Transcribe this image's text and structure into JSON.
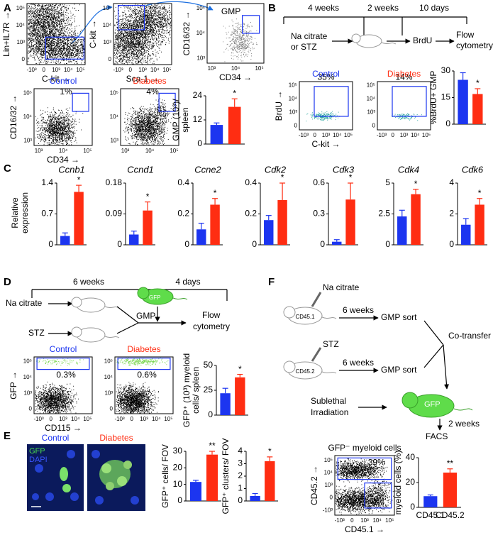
{
  "panels": {
    "A": {
      "letter": "A",
      "plots": [
        {
          "x_label": "C-kit →",
          "y_label": "Lin+IL7R →",
          "x_ticks": [
            "-10³",
            "0",
            "10³",
            "10⁴",
            "10⁵"
          ],
          "y_ticks": [
            "10⁵",
            "10⁴",
            "10³",
            "0"
          ]
        },
        {
          "x_label": "Sca-1 →",
          "y_label": "C-kit →",
          "x_ticks": [
            "-10³",
            "0",
            "10³",
            "10⁴",
            "10⁵"
          ],
          "y_ticks": [
            "10⁵",
            "10⁴",
            "10³",
            "0"
          ]
        },
        {
          "x_label": "CD34 →",
          "y_label": "CD16/32 →",
          "x_ticks": [
            "10³",
            "10⁴",
            "10⁵"
          ],
          "y_ticks": [
            "10⁵",
            "10⁴",
            "10³"
          ],
          "gates": [
            "GMP"
          ]
        },
        {
          "title": "Control",
          "x_label": "CD34 →",
          "y_label": "CD16/32 →",
          "x_ticks": [
            "10³",
            "10⁴",
            "10⁵"
          ],
          "y_ticks": [
            "10⁵",
            "10⁴",
            "10³"
          ],
          "gates": [
            "1%"
          ]
        },
        {
          "title": "Diabetes",
          "x_label": "",
          "y_label": "",
          "x_ticks": [
            "10³",
            "10⁴",
            "10⁵"
          ],
          "y_ticks": [
            "10⁵",
            "10⁴",
            "10³"
          ],
          "gates": [
            "4%"
          ]
        }
      ]
    },
    "B": {
      "letter": "B",
      "timeline": [
        "4 weeks",
        "2 weeks",
        "10 days"
      ],
      "treatment": [
        "Na citrate",
        "or STZ"
      ],
      "label": "BrdU",
      "readout": [
        "Flow",
        "cytometry"
      ],
      "plots": [
        {
          "title": "Control",
          "x_label": "C-kit →",
          "y_label": "BrdU →",
          "x_ticks": [
            "-10³",
            "0",
            "10³",
            "10⁴",
            "10⁵"
          ],
          "y_ticks": [
            "10⁵",
            "10⁴",
            "10³",
            "0"
          ],
          "gates": [
            "35%"
          ]
        },
        {
          "title": "Diabetes",
          "x_label": "",
          "y_label": "",
          "x_ticks": [
            "-10³",
            "0",
            "10³",
            "10⁴",
            "10⁵"
          ],
          "y_ticks": [
            "10⁵",
            "10⁴",
            "10³",
            "0"
          ],
          "gates": [
            "14%"
          ]
        }
      ]
    },
    "C": {
      "letter": "C",
      "ylabel": [
        "Relative",
        "expression"
      ]
    },
    "D": {
      "letter": "D",
      "timeline": [
        "6 weeks",
        "4 days"
      ],
      "control": "Na citrate",
      "treatment": "STZ",
      "donor": "GFP",
      "cells": "GMP",
      "readout": [
        "Flow",
        "cytometry"
      ],
      "plots": [
        {
          "title": "Control",
          "x_label": "CD115 →",
          "y_label": "GFP →",
          "x_ticks": [
            "-10³",
            "0",
            "10³",
            "10⁴",
            "10⁵"
          ],
          "y_ticks": [
            "10⁵",
            "10⁴",
            "10³",
            "0"
          ],
          "gates": [
            "0.3%"
          ]
        },
        {
          "title": "Diabetes",
          "x_label": "",
          "y_label": "",
          "x_ticks": [
            "-10³",
            "0",
            "10³",
            "10⁴",
            "10⁵"
          ],
          "y_ticks": [
            "10⁵",
            "10⁴",
            "10³",
            "0"
          ],
          "gates": [
            "0.6%"
          ]
        }
      ]
    },
    "E": {
      "letter": "E",
      "images": [
        "Control",
        "Diabetes"
      ],
      "stains": [
        "GFP",
        "DAPI"
      ]
    },
    "F": {
      "letter": "F",
      "donor1": {
        "treatment": "Na citrate",
        "strain": "CD45.1",
        "time": "6 weeks",
        "step": "GMP sort"
      },
      "donor2": {
        "treatment": "STZ",
        "strain": "CD45.2",
        "time": "6 weeks",
        "step": "GMP sort"
      },
      "merge": "Co-transfer",
      "recipient": [
        "Sublethal",
        "Irradiation"
      ],
      "recipient_mouse": "GFP",
      "time": "2 weeks",
      "readout": "FACS",
      "plots": [
        {
          "title": "GFP⁻ myeloid cells",
          "x_label": "CD45.1 →",
          "y_label": "CD45.2 →",
          "x_ticks": [
            "-10³",
            "0",
            "10³",
            "10⁴",
            "10⁵"
          ],
          "y_ticks": [
            "10⁵",
            "10⁴",
            "10³",
            "0",
            "-10³"
          ],
          "gates": [
            "39%",
            "9%"
          ]
        }
      ]
    }
  },
  "chart_data": [
    {
      "type": "bar",
      "ylabel": [
        "GMP (10³)/",
        "spleen"
      ],
      "values": [
        9.5,
        18.5
      ],
      "errors": [
        1,
        4
      ],
      "colors": [
        "#1c35f0",
        "#ff2d12"
      ],
      "ylim": [
        0,
        24
      ],
      "yticks": [
        0,
        12,
        24
      ],
      "significance": "*"
    },
    {
      "type": "bar",
      "ylabel": [
        "%BrdU+ GMP"
      ],
      "values": [
        25,
        17
      ],
      "errors": [
        4,
        3
      ],
      "colors": [
        "#1c35f0",
        "#ff2d12"
      ],
      "ylim": [
        0,
        30
      ],
      "yticks": [
        0,
        15,
        30
      ],
      "significance": "*"
    },
    {
      "type": "bar",
      "title": "Ccnb1",
      "values": [
        0.2,
        1.2
      ],
      "errors": [
        0.07,
        0.15
      ],
      "colors": [
        "#1c35f0",
        "#ff2d12"
      ],
      "ylim": [
        0,
        1.4
      ],
      "yticks": [
        0,
        0.7,
        1.4
      ],
      "significance": "*"
    },
    {
      "type": "bar",
      "title": "Ccnd1",
      "values": [
        0.03,
        0.1
      ],
      "errors": [
        0.01,
        0.025
      ],
      "colors": [
        "#1c35f0",
        "#ff2d12"
      ],
      "ylim": [
        0,
        0.18
      ],
      "yticks": [
        0,
        0.09,
        0.18
      ],
      "significance": "*"
    },
    {
      "type": "bar",
      "title": "Ccne2",
      "values": [
        0.1,
        0.26
      ],
      "errors": [
        0.04,
        0.04
      ],
      "colors": [
        "#1c35f0",
        "#ff2d12"
      ],
      "ylim": [
        0,
        0.4
      ],
      "yticks": [
        0,
        0.2,
        0.4
      ],
      "significance": "*"
    },
    {
      "type": "bar",
      "title": "Cdk2",
      "values": [
        0.16,
        0.29
      ],
      "errors": [
        0.03,
        0.11
      ],
      "colors": [
        "#1c35f0",
        "#ff2d12"
      ],
      "ylim": [
        0,
        0.4
      ],
      "yticks": [
        0,
        0.2,
        0.4
      ],
      "significance": "*"
    },
    {
      "type": "bar",
      "title": "Cdk3",
      "values": [
        0.03,
        0.44
      ],
      "errors": [
        0.02,
        0.16
      ],
      "colors": [
        "#1c35f0",
        "#ff2d12"
      ],
      "ylim": [
        0,
        0.6
      ],
      "yticks": [
        0,
        0.3,
        0.6
      ],
      "significance": "*"
    },
    {
      "type": "bar",
      "title": "Cdk4",
      "values": [
        2.3,
        4.1
      ],
      "errors": [
        0.5,
        0.4
      ],
      "colors": [
        "#1c35f0",
        "#ff2d12"
      ],
      "ylim": [
        0,
        5
      ],
      "yticks": [
        0,
        2.5,
        5
      ],
      "significance": "*"
    },
    {
      "type": "bar",
      "title": "Cdk6",
      "values": [
        1.3,
        2.6
      ],
      "errors": [
        0.4,
        0.4
      ],
      "colors": [
        "#1c35f0",
        "#ff2d12"
      ],
      "ylim": [
        0,
        4
      ],
      "yticks": [
        0,
        2,
        4
      ],
      "significance": "*"
    },
    {
      "type": "bar",
      "ylabel": [
        "GFP⁺ (10³) myeloid",
        "cells/ spleen"
      ],
      "values": [
        22,
        38
      ],
      "errors": [
        5,
        3
      ],
      "colors": [
        "#1c35f0",
        "#ff2d12"
      ],
      "ylim": [
        0,
        50
      ],
      "yticks": [
        0,
        25,
        50
      ],
      "significance": "*"
    },
    {
      "type": "bar",
      "ylabel": [
        "GFP⁺ cells/ FOV"
      ],
      "values": [
        11.5,
        28
      ],
      "errors": [
        1,
        2
      ],
      "colors": [
        "#1c35f0",
        "#ff2d12"
      ],
      "ylim": [
        0,
        30
      ],
      "yticks": [
        0,
        10,
        20,
        30
      ],
      "significance": "**"
    },
    {
      "type": "bar",
      "ylabel": [
        "GFP⁺ clusters/ FOV"
      ],
      "values": [
        0.4,
        3.2
      ],
      "errors": [
        0.2,
        0.35
      ],
      "colors": [
        "#1c35f0",
        "#ff2d12"
      ],
      "ylim": [
        0,
        4
      ],
      "yticks": [
        0,
        1,
        2,
        3,
        4
      ],
      "significance": "*"
    },
    {
      "type": "bar",
      "ylabel": [
        "myeloid cells (%)"
      ],
      "categories": [
        "CD45.1",
        "CD45.2"
      ],
      "values": [
        9,
        28
      ],
      "errors": [
        1,
        3
      ],
      "colors": [
        "#1c35f0",
        "#ff2d12"
      ],
      "ylim": [
        0,
        40
      ],
      "yticks": [
        0,
        20,
        40
      ],
      "significance": "**"
    }
  ]
}
